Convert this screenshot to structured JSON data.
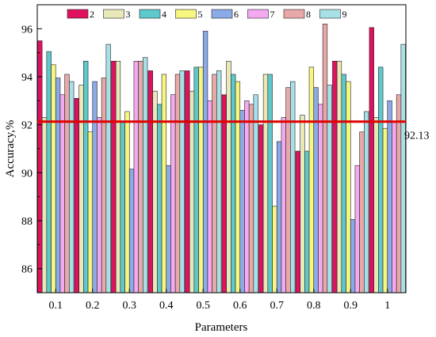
{
  "chart_data": {
    "type": "bar",
    "xlabel": "Parameters",
    "ylabel": "Accuracy,%",
    "ylim": [
      85,
      97
    ],
    "yticks": [
      86,
      88,
      90,
      92,
      94,
      96
    ],
    "categories": [
      "0.1",
      "0.2",
      "0.3",
      "0.4",
      "0.5",
      "0.6",
      "0.7",
      "0.8",
      "0.9",
      "1"
    ],
    "series": [
      {
        "name": "2",
        "color": "#e0115f",
        "values": [
          95.5,
          93.1,
          94.65,
          94.25,
          94.25,
          93.25,
          92.0,
          90.9,
          94.65,
          96.05
        ]
      },
      {
        "name": "3",
        "color": "#e8e8b8",
        "values": [
          92.3,
          93.65,
          94.65,
          93.4,
          93.4,
          94.65,
          94.1,
          92.4,
          94.65,
          92.3
        ]
      },
      {
        "name": "4",
        "color": "#5fc8cc",
        "values": [
          95.05,
          94.65,
          92.1,
          92.85,
          94.4,
          94.1,
          94.1,
          90.9,
          94.1,
          94.4
        ]
      },
      {
        "name": "5",
        "color": "#f6f680",
        "values": [
          94.5,
          91.7,
          92.55,
          94.1,
          94.4,
          93.8,
          88.6,
          94.4,
          93.8,
          91.85
        ]
      },
      {
        "name": "6",
        "color": "#8aaae8",
        "values": [
          93.95,
          93.8,
          90.15,
          90.3,
          95.9,
          92.6,
          91.3,
          93.55,
          88.05,
          93.0
        ]
      },
      {
        "name": "7",
        "color": "#f4aaf0",
        "values": [
          93.25,
          92.3,
          94.65,
          93.25,
          93.0,
          93.0,
          92.3,
          92.85,
          90.3,
          92.1
        ]
      },
      {
        "name": "8",
        "color": "#e8a8a8",
        "values": [
          94.1,
          93.95,
          94.65,
          94.1,
          94.1,
          92.85,
          93.55,
          96.2,
          91.7,
          93.25
        ]
      },
      {
        "name": "9",
        "color": "#a8e0e8",
        "values": [
          93.8,
          95.35,
          94.8,
          94.25,
          94.25,
          93.25,
          93.8,
          93.65,
          92.55,
          95.35
        ]
      }
    ],
    "reference_line": {
      "value": 92.13,
      "label": "92.13",
      "color": "#e00000"
    },
    "legend_position": "top",
    "grid": false
  }
}
